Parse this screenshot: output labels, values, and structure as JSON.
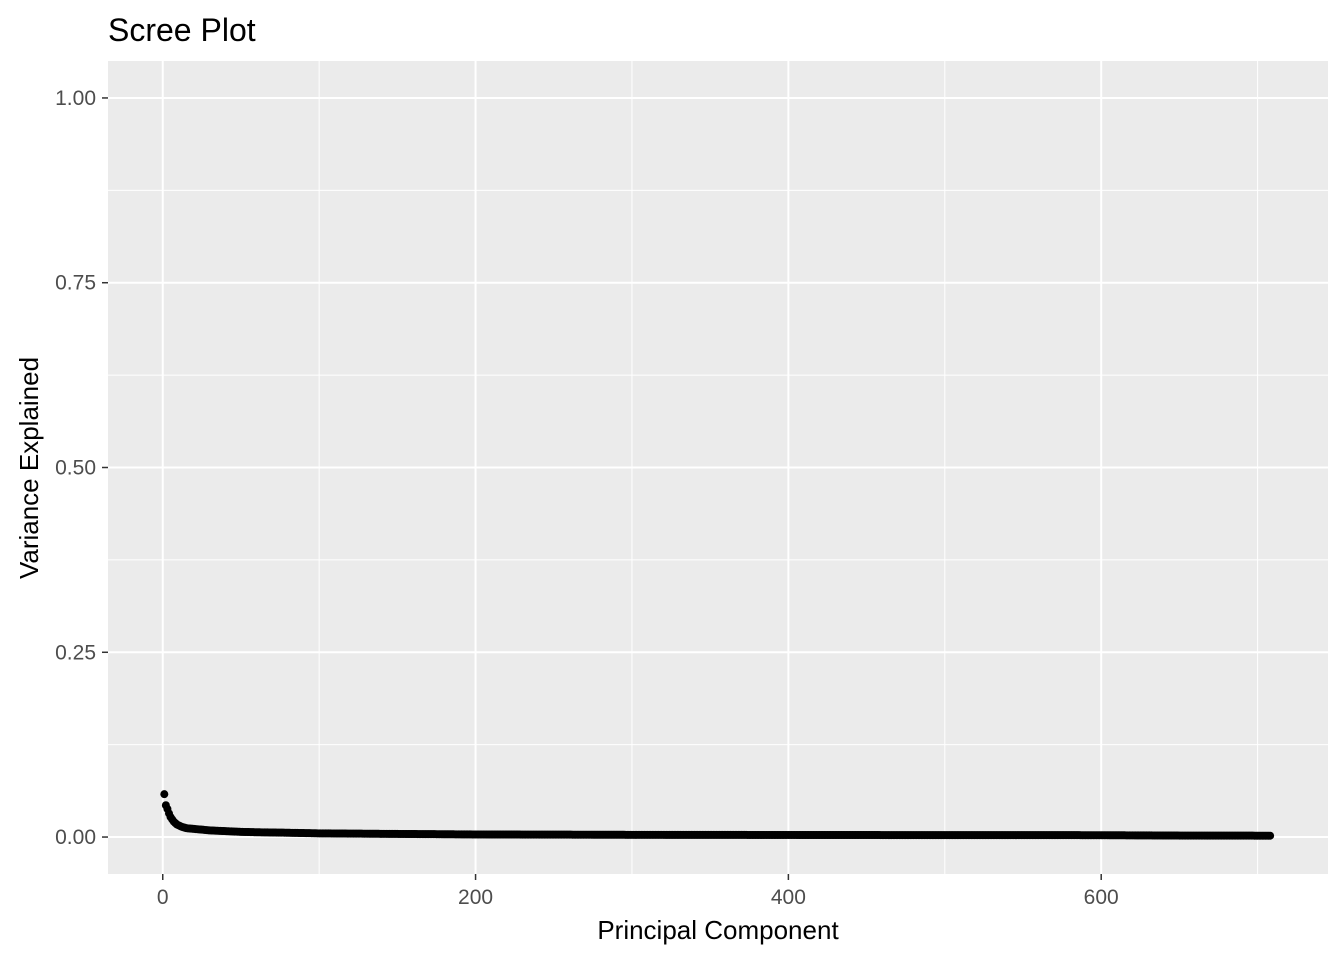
{
  "chart_data": {
    "type": "scatter",
    "title": "Scree Plot",
    "xlabel": "Principal Component",
    "ylabel": "Variance Explained",
    "xlim": [
      -35,
      745
    ],
    "ylim": [
      -0.05,
      1.05
    ],
    "x_ticks": [
      0,
      200,
      400,
      600
    ],
    "x_tick_labels": [
      "0",
      "200",
      "400",
      "600"
    ],
    "y_ticks": [
      0,
      0.25,
      0.5,
      0.75,
      1.0
    ],
    "y_tick_labels": [
      "0.00",
      "0.25",
      "0.50",
      "0.75",
      "1.00"
    ],
    "grid": true,
    "n_components": 708,
    "series": [
      {
        "x": [
          1,
          2,
          3,
          4,
          5,
          6,
          7,
          8,
          9,
          10,
          12,
          15,
          20,
          25,
          30,
          40,
          50,
          60,
          80,
          100,
          130,
          165,
          200,
          300,
          400,
          500,
          600,
          650,
          708
        ],
        "values": [
          0.058,
          0.043,
          0.038,
          0.032,
          0.027,
          0.024,
          0.021,
          0.019,
          0.017,
          0.016,
          0.014,
          0.012,
          0.011,
          0.01,
          0.009,
          0.008,
          0.007,
          0.0065,
          0.0058,
          0.005,
          0.0045,
          0.004,
          0.0035,
          0.003,
          0.0028,
          0.0026,
          0.0025,
          0.002,
          0.0018
        ]
      }
    ],
    "colors": {
      "panel": "#ebebeb",
      "grid": "#ffffff",
      "points": "#000000",
      "tick_text": "#4d4d4d",
      "tick_mark": "#333333"
    }
  }
}
